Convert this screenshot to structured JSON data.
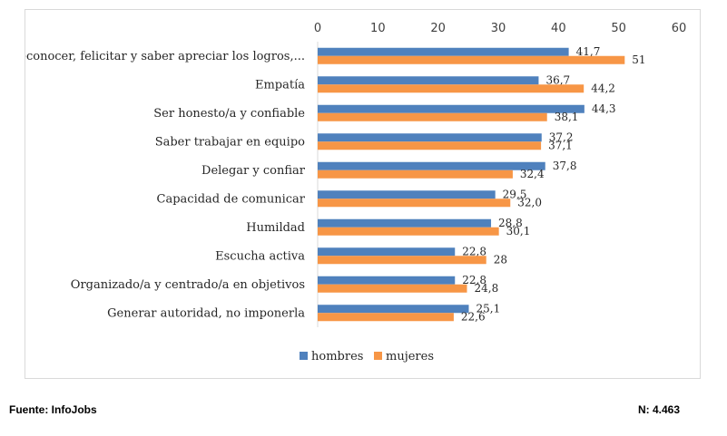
{
  "chart_data": {
    "type": "bar",
    "orientation": "horizontal",
    "title": "",
    "xlabel": "",
    "ylabel": "",
    "xlim": [
      0,
      60
    ],
    "x_ticks": [
      0,
      10,
      20,
      30,
      40,
      50,
      60
    ],
    "x_axis_position": "top",
    "grid": false,
    "legend_position": "bottom",
    "categories": [
      "Reconocer, felicitar y saber apreciar los logros,...",
      "Empatía",
      "Ser honesto/a y confiable",
      "Saber trabajar en equipo",
      "Delegar y confiar",
      "Capacidad de comunicar",
      "Humildad",
      "Escucha activa",
      "Organizado/a y centrado/a en objetivos",
      "Generar autoridad, no imponerla"
    ],
    "series": [
      {
        "name": "hombres",
        "color": "#4f81bd",
        "values": [
          41.7,
          36.7,
          44.3,
          37.2,
          37.8,
          29.5,
          28.8,
          22.8,
          22.8,
          25.1
        ],
        "labels": [
          "41,7",
          "36,7",
          "44,3",
          "37,2",
          "37,8",
          "29,5",
          "28,8",
          "22,8",
          "22,8",
          "25,1"
        ]
      },
      {
        "name": "mujeres",
        "color": "#f79646",
        "values": [
          51,
          44.2,
          38.1,
          37.1,
          32.4,
          32.0,
          30.1,
          28,
          24.8,
          22.6
        ],
        "labels": [
          "51",
          "44,2",
          "38,1",
          "37,1",
          "32,4",
          "32,0",
          "30,1",
          "28",
          "24,8",
          "22,6"
        ]
      }
    ]
  },
  "footer": {
    "source": "Fuente: InfoJobs",
    "n": "N: 4.463"
  }
}
